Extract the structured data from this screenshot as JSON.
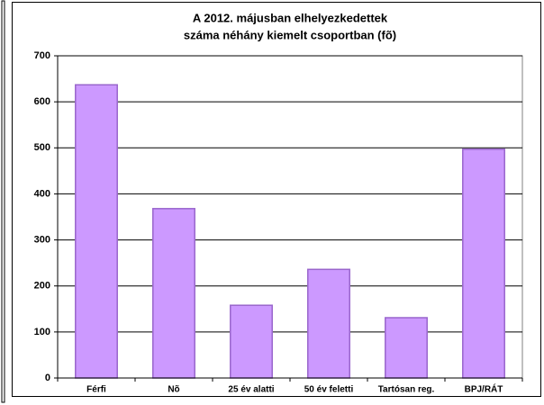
{
  "chart_data": {
    "type": "bar",
    "title": [
      "A 2012. májusban elhelyezkedettek",
      "száma néhány kiemelt csoportban (fõ)"
    ],
    "categories": [
      "Férfi",
      "Nõ",
      "25 év alatti",
      "50 év feletti",
      "Tartósan reg.",
      "BPJ/RÁT"
    ],
    "values": [
      637,
      368,
      158,
      236,
      131,
      497
    ],
    "color": "#cc99ff",
    "edge_color": "#9966cc",
    "ylim": [
      0,
      700
    ],
    "yticks": [
      0,
      100,
      200,
      300,
      400,
      500,
      600,
      700
    ],
    "grid": true
  }
}
